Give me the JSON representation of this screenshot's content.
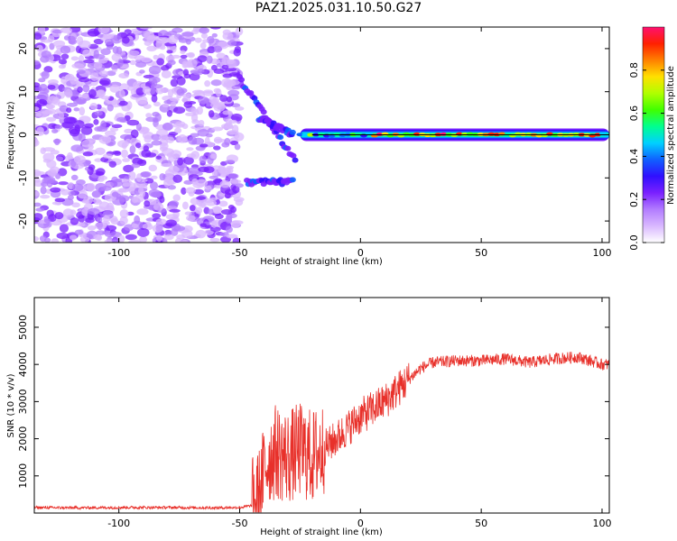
{
  "title": "PAZ1.2025.031.10.50.G27",
  "colors": {
    "snr_line": "#e8302a",
    "frame": "#000000",
    "colormap": [
      "#ffffff",
      "#d9b8ff",
      "#b27cff",
      "#7a20ff",
      "#3010ff",
      "#1060ff",
      "#00d0ff",
      "#00ff90",
      "#40ff00",
      "#b0ff00",
      "#ffe000",
      "#ff8000",
      "#ff2000",
      "#ff1070"
    ]
  },
  "chart_data": [
    {
      "type": "heatmap",
      "xlabel": "Height of straight line (km)",
      "ylabel": "Frequency (Hz)",
      "xlim": [
        -135,
        103
      ],
      "ylim": [
        -25,
        25
      ],
      "xticks": [
        -100,
        -50,
        0,
        50,
        100
      ],
      "yticks": [
        -20,
        -10,
        0,
        10,
        20
      ],
      "colorbar": {
        "label": "Normalized spectral amplitude",
        "range": [
          0,
          1
        ],
        "ticks": [
          "0.0",
          "0.2",
          "0.4",
          "0.6",
          "0.8"
        ]
      },
      "features": {
        "noise_region_x": [
          -135,
          -50
        ],
        "carrier_freq_hz": 0,
        "carrier_from_x": -25,
        "peak_band_x": [
          5,
          100
        ],
        "diverging_branches": [
          {
            "x": [
              -50,
              -27
            ],
            "f": [
              13,
              -6
            ]
          },
          {
            "x": [
              -42,
              -28
            ],
            "f": [
              4,
              0
            ]
          },
          {
            "x": [
              -47,
              -28
            ],
            "f": [
              -11,
              -11
            ]
          }
        ]
      }
    },
    {
      "type": "line",
      "xlabel": "Height of straight line (km)",
      "ylabel": "SNR (10 * v/v)",
      "xlim": [
        -135,
        103
      ],
      "ylim": [
        0,
        5800
      ],
      "xticks": [
        -100,
        -50,
        0,
        50,
        100
      ],
      "yticks": [
        1000,
        2000,
        3000,
        4000,
        5000
      ],
      "series": [
        {
          "x": [
            -135,
            -120,
            -100,
            -80,
            -60,
            -50,
            -45,
            -42,
            -40,
            -38,
            -35,
            -30,
            -25,
            -20,
            -15,
            -10,
            -5,
            0,
            5,
            10,
            15,
            20,
            25,
            30,
            40,
            50,
            60,
            70,
            80,
            90,
            95,
            100,
            103
          ],
          "values": [
            150,
            140,
            150,
            150,
            140,
            150,
            200,
            450,
            1100,
            1500,
            1650,
            1500,
            1700,
            1500,
            1750,
            2000,
            2300,
            2600,
            2800,
            3000,
            3300,
            3600,
            3900,
            4050,
            4100,
            4100,
            4150,
            4050,
            4150,
            4200,
            4100,
            4000,
            4000
          ]
        }
      ]
    }
  ]
}
